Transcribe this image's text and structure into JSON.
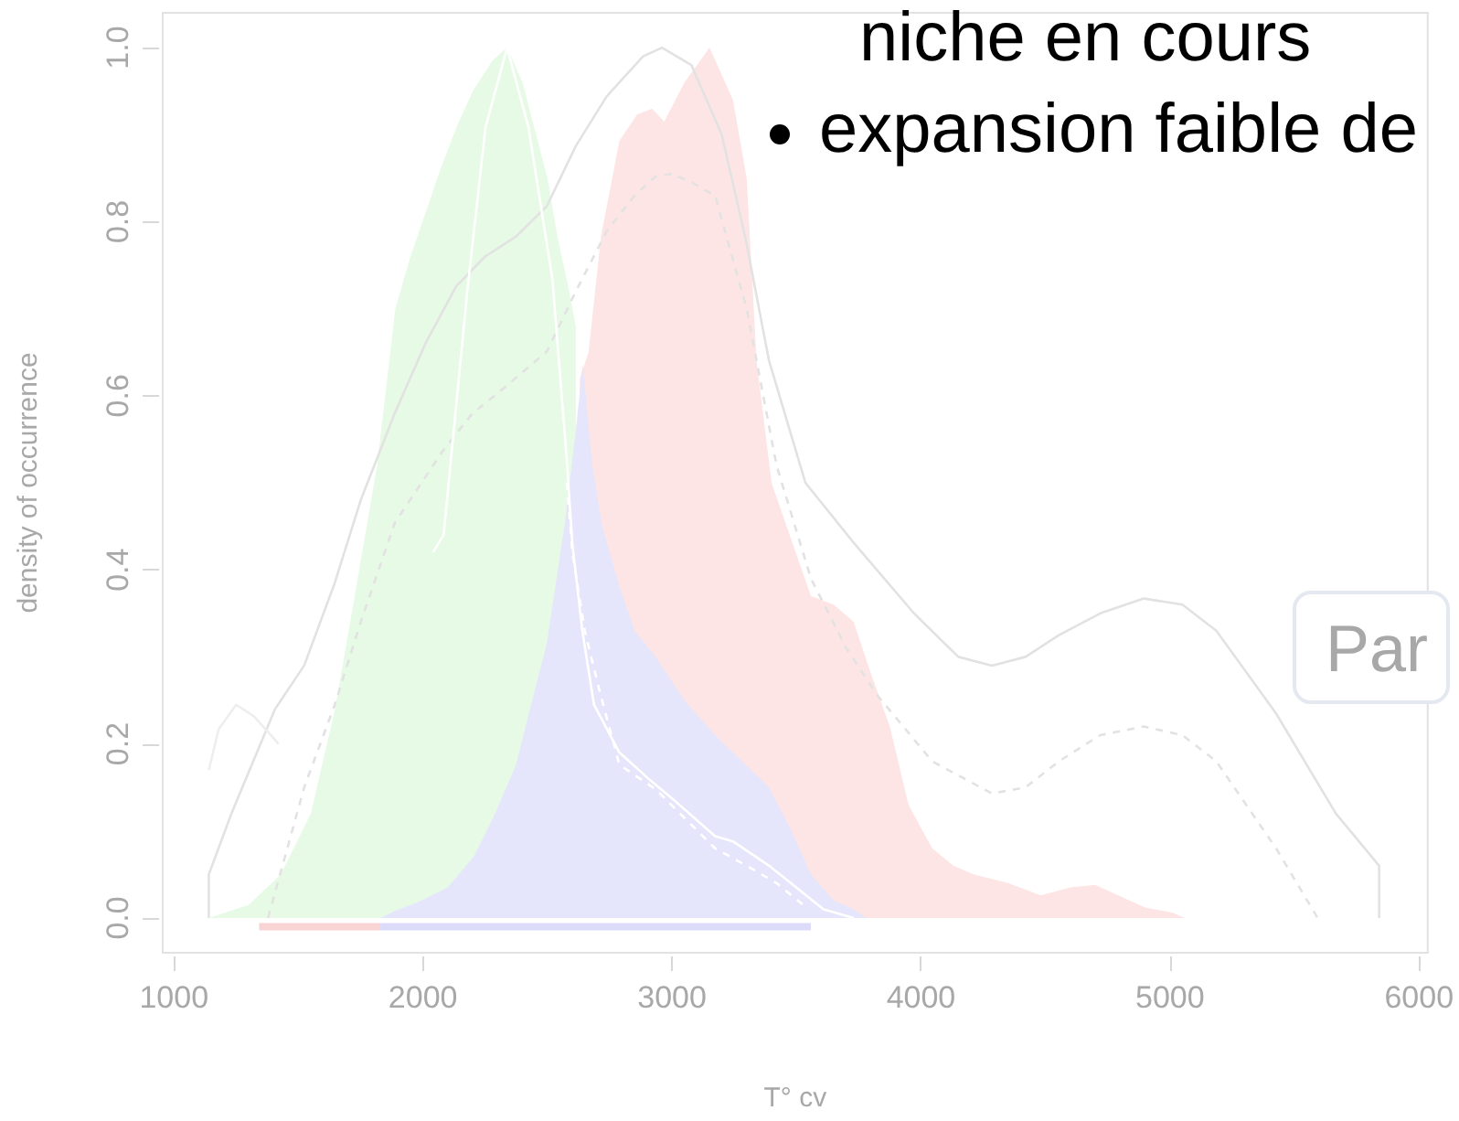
{
  "chart_data": {
    "type": "area",
    "xlabel": "T° cv",
    "ylabel": "density of occurrence",
    "annotations": [
      "niche en cours",
      "expansion faible de",
      "Par"
    ],
    "xlim": [
      955,
      6035
    ],
    "ylim": [
      -0.04,
      1.04
    ],
    "xticks": [
      1000,
      2000,
      3000,
      4000,
      5000,
      6000
    ],
    "yticks": [
      {
        "value": 0,
        "label": "0.0"
      },
      {
        "value": 0.2,
        "label": "0.2"
      },
      {
        "value": 0.4,
        "label": "0.4"
      },
      {
        "value": 0.6,
        "label": "0.6"
      },
      {
        "value": 0.8,
        "label": "0.8"
      },
      {
        "value": 1,
        "label": "1.0"
      }
    ],
    "series": [
      {
        "color": "#fde5e5",
        "x": [
          2630,
          2665,
          2715,
          2789,
          2860,
          2920,
          2969,
          3050,
          3151,
          3245,
          3300,
          3340,
          3400,
          3485,
          3558,
          3650,
          3730,
          3800,
          3875,
          3950,
          4045,
          4130,
          4212,
          4350,
          4481,
          4600,
          4700,
          4800,
          4900,
          5012,
          5060
        ],
        "values": [
          0.62,
          0.65,
          0.783,
          0.893,
          0.923,
          0.93,
          0.915,
          0.96,
          1.0,
          0.94,
          0.85,
          0.64,
          0.5,
          0.43,
          0.37,
          0.36,
          0.34,
          0.28,
          0.22,
          0.13,
          0.08,
          0.06,
          0.05,
          0.04,
          0.026,
          0.035,
          0.038,
          0.025,
          0.012,
          0.006,
          0
        ]
      },
      {
        "color": "#e6fae6",
        "x": [
          1140,
          1300,
          1429,
          1550,
          1647,
          1720,
          1816,
          1889,
          1950,
          2010,
          2070,
          2134,
          2200,
          2279,
          2338,
          2400,
          2447,
          2500,
          2542,
          2580,
          2614
        ],
        "values": [
          0,
          0.015,
          0.05,
          0.12,
          0.24,
          0.36,
          0.52,
          0.7,
          0.76,
          0.81,
          0.86,
          0.908,
          0.95,
          0.985,
          1.0,
          0.96,
          0.908,
          0.85,
          0.78,
          0.73,
          0.68
        ]
      },
      {
        "color": "#e5e5fb",
        "x": [
          1830,
          1887,
          1980,
          2100,
          2206,
          2290,
          2374,
          2430,
          2498,
          2570,
          2610,
          2642,
          2680,
          2720,
          2790,
          2850,
          2934,
          3050,
          3173,
          3245,
          3390,
          3480,
          3558,
          3650,
          3730,
          3780
        ],
        "values": [
          0,
          0.008,
          0.018,
          0.035,
          0.071,
          0.12,
          0.176,
          0.24,
          0.316,
          0.454,
          0.55,
          0.636,
          0.52,
          0.45,
          0.38,
          0.33,
          0.3,
          0.25,
          0.21,
          0.19,
          0.15,
          0.1,
          0.05,
          0.02,
          0.01,
          0
        ]
      },
      {
        "type": "line",
        "color": "#e2e2e2",
        "line_style": "solid",
        "x": [
          1140,
          1140,
          1231,
          1406,
          1523,
          1646,
          1750,
          1887,
          2010,
          2134,
          2250,
          2374,
          2498,
          2614,
          2738,
          2884,
          2960,
          3078,
          3200,
          3296,
          3390,
          3536,
          3733,
          3972,
          4150,
          4285,
          4420,
          4554,
          4720,
          4895,
          5050,
          5186,
          5426,
          5666,
          5840,
          5840
        ],
        "values": [
          0,
          0.05,
          0.12,
          0.24,
          0.29,
          0.385,
          0.48,
          0.58,
          0.66,
          0.726,
          0.76,
          0.783,
          0.818,
          0.887,
          0.944,
          0.99,
          1.0,
          0.98,
          0.9,
          0.78,
          0.64,
          0.5,
          0.43,
          0.35,
          0.3,
          0.29,
          0.3,
          0.325,
          0.35,
          0.367,
          0.36,
          0.33,
          0.235,
          0.12,
          0.06,
          0
        ]
      },
      {
        "type": "line",
        "color": "#e2e2e2",
        "line_style": "dashed",
        "x": [
          1378,
          1523,
          1646,
          1750,
          1887,
          2083,
          2200,
          2326,
          2498,
          2614,
          2738,
          2850,
          2934,
          3000,
          3080,
          3173,
          3300,
          3420,
          3558,
          3700,
          3827,
          4045,
          4285,
          4420,
          4554,
          4720,
          4895,
          5050,
          5186,
          5426,
          5593
        ],
        "values": [
          0,
          0.15,
          0.245,
          0.34,
          0.454,
          0.538,
          0.58,
          0.609,
          0.651,
          0.72,
          0.789,
          0.83,
          0.852,
          0.855,
          0.845,
          0.83,
          0.7,
          0.52,
          0.39,
          0.31,
          0.255,
          0.18,
          0.143,
          0.15,
          0.18,
          0.21,
          0.22,
          0.21,
          0.18,
          0.08,
          0
        ]
      },
      {
        "type": "line",
        "color": "#ffffff",
        "line_style": "solid",
        "x": [
          2040,
          2083,
          2178,
          2251,
          2338,
          2424,
          2520,
          2578,
          2600,
          2640,
          2687,
          2789,
          2906,
          3006,
          3173,
          3245,
          3390,
          3609,
          3730
        ],
        "values": [
          0.42,
          0.44,
          0.72,
          0.908,
          1.0,
          0.908,
          0.734,
          0.525,
          0.43,
          0.33,
          0.245,
          0.19,
          0.16,
          0.136,
          0.094,
          0.088,
          0.06,
          0.01,
          0
        ]
      },
      {
        "type": "line",
        "color": "#ffffff",
        "line_style": "dashed",
        "x": [
          2578,
          2600,
          2650,
          2710,
          2789,
          2934,
          3050,
          3173,
          3300,
          3420,
          3540
        ],
        "values": [
          0.5,
          0.42,
          0.33,
          0.26,
          0.176,
          0.148,
          0.115,
          0.08,
          0.06,
          0.04,
          0.012
        ]
      },
      {
        "type": "line",
        "color": "#eeeeee",
        "line_style": "solid",
        "x": [
          1140,
          1180,
          1250,
          1320,
          1390,
          1420
        ],
        "values": [
          0.17,
          0.217,
          0.245,
          0.232,
          0.21,
          0.2
        ]
      },
      {
        "type": "line",
        "color": "#f8d4d4",
        "line_style": "solid",
        "x": [
          1342,
          1829
        ],
        "values": [
          -0.01,
          -0.01
        ]
      },
      {
        "type": "line",
        "color": "#dcdcfa",
        "line_style": "solid",
        "x": [
          1829,
          3558
        ],
        "values": [
          -0.01,
          -0.01
        ]
      }
    ]
  }
}
